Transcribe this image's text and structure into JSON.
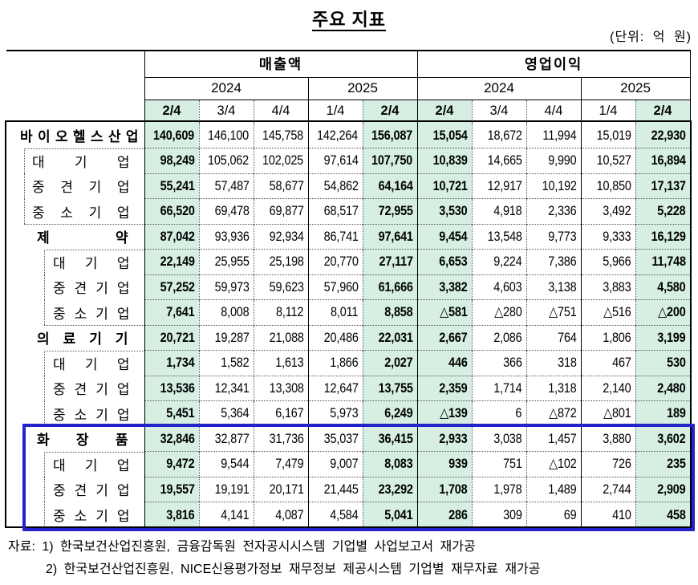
{
  "title": "주요 지표",
  "unit_note": "(단위: 억 원)",
  "table": {
    "metric_groups": [
      "매출액",
      "영업이익"
    ],
    "years": [
      "2024",
      "2025",
      "2024",
      "2025"
    ],
    "quarters": [
      "2/4",
      "3/4",
      "4/4",
      "1/4",
      "2/4",
      "2/4",
      "3/4",
      "4/4",
      "1/4",
      "2/4"
    ],
    "highlight_cols": [
      0,
      4,
      5,
      9
    ],
    "rows": [
      {
        "label": "바이오헬스산업",
        "type": "total",
        "values": [
          "140,609",
          "146,100",
          "145,758",
          "142,264",
          "156,087",
          "15,054",
          "18,672",
          "11,994",
          "15,019",
          "22,930"
        ]
      },
      {
        "label": "대기업",
        "type": "sub",
        "indent": 1,
        "first": true,
        "values": [
          "98,249",
          "105,062",
          "102,025",
          "97,614",
          "107,750",
          "10,839",
          "14,665",
          "9,990",
          "10,527",
          "16,894"
        ]
      },
      {
        "label": "중견기업",
        "type": "sub",
        "indent": 1,
        "values": [
          "55,241",
          "57,487",
          "58,677",
          "54,862",
          "64,164",
          "10,721",
          "12,917",
          "10,192",
          "10,850",
          "17,137"
        ]
      },
      {
        "label": "중소기업",
        "type": "sub",
        "indent": 1,
        "values": [
          "66,520",
          "69,478",
          "69,877",
          "68,517",
          "72,955",
          "3,530",
          "4,918",
          "2,336",
          "3,492",
          "5,228"
        ]
      },
      {
        "label": "제약",
        "type": "section",
        "values": [
          "87,042",
          "93,936",
          "92,934",
          "86,741",
          "97,641",
          "9,454",
          "13,548",
          "9,773",
          "9,333",
          "16,129"
        ]
      },
      {
        "label": "대기업",
        "type": "sub",
        "indent": 2,
        "first": true,
        "values": [
          "22,149",
          "25,955",
          "25,198",
          "20,770",
          "27,117",
          "6,653",
          "9,224",
          "7,386",
          "5,966",
          "11,748"
        ]
      },
      {
        "label": "중견기업",
        "type": "sub",
        "indent": 2,
        "values": [
          "57,252",
          "59,973",
          "59,623",
          "57,960",
          "61,666",
          "3,382",
          "4,603",
          "3,138",
          "3,883",
          "4,580"
        ]
      },
      {
        "label": "중소기업",
        "type": "sub",
        "indent": 2,
        "values": [
          "7,641",
          "8,008",
          "8,112",
          "8,011",
          "8,858",
          "△581",
          "△280",
          "△751",
          "△516",
          "△200"
        ]
      },
      {
        "label": "의료기기",
        "type": "section",
        "values": [
          "20,721",
          "19,287",
          "21,088",
          "20,486",
          "22,031",
          "2,667",
          "2,086",
          "764",
          "1,806",
          "3,199"
        ]
      },
      {
        "label": "대기업",
        "type": "sub",
        "indent": 2,
        "first": true,
        "values": [
          "1,734",
          "1,582",
          "1,613",
          "1,866",
          "2,027",
          "446",
          "366",
          "318",
          "467",
          "530"
        ]
      },
      {
        "label": "중견기업",
        "type": "sub",
        "indent": 2,
        "values": [
          "13,536",
          "12,341",
          "13,308",
          "12,647",
          "13,755",
          "2,359",
          "1,714",
          "1,318",
          "2,140",
          "2,480"
        ]
      },
      {
        "label": "중소기업",
        "type": "sub",
        "indent": 2,
        "values": [
          "5,451",
          "5,364",
          "6,167",
          "5,973",
          "6,249",
          "△139",
          "6",
          "△872",
          "△801",
          "189"
        ]
      },
      {
        "label": "화장품",
        "type": "section",
        "values": [
          "32,846",
          "32,877",
          "31,736",
          "35,037",
          "36,415",
          "2,933",
          "3,038",
          "1,457",
          "3,880",
          "3,602"
        ]
      },
      {
        "label": "대기업",
        "type": "sub",
        "indent": 2,
        "first": true,
        "values": [
          "9,472",
          "9,544",
          "7,479",
          "9,007",
          "8,083",
          "939",
          "751",
          "△102",
          "726",
          "235"
        ]
      },
      {
        "label": "중견기업",
        "type": "sub",
        "indent": 2,
        "values": [
          "19,557",
          "19,191",
          "20,171",
          "21,445",
          "23,292",
          "1,708",
          "1,978",
          "1,489",
          "2,744",
          "2,909"
        ]
      },
      {
        "label": "중소기업",
        "type": "sub",
        "indent": 2,
        "values": [
          "3,816",
          "4,141",
          "4,087",
          "4,584",
          "5,041",
          "286",
          "309",
          "69",
          "410",
          "458"
        ]
      }
    ]
  },
  "emphasis_section": "화장품",
  "colors": {
    "highlight_bg": "#d6efe2",
    "emphasis_box": "#2323cc"
  },
  "footnotes": [
    "자료: 1) 한국보건산업진흥원, 금융감독원 전자공시시스템 기업별 사업보고서 재가공",
    "2) 한국보건산업진흥원, NICE신용평가정보 재무정보 제공시스템 기업별 재무자료 재가공"
  ]
}
